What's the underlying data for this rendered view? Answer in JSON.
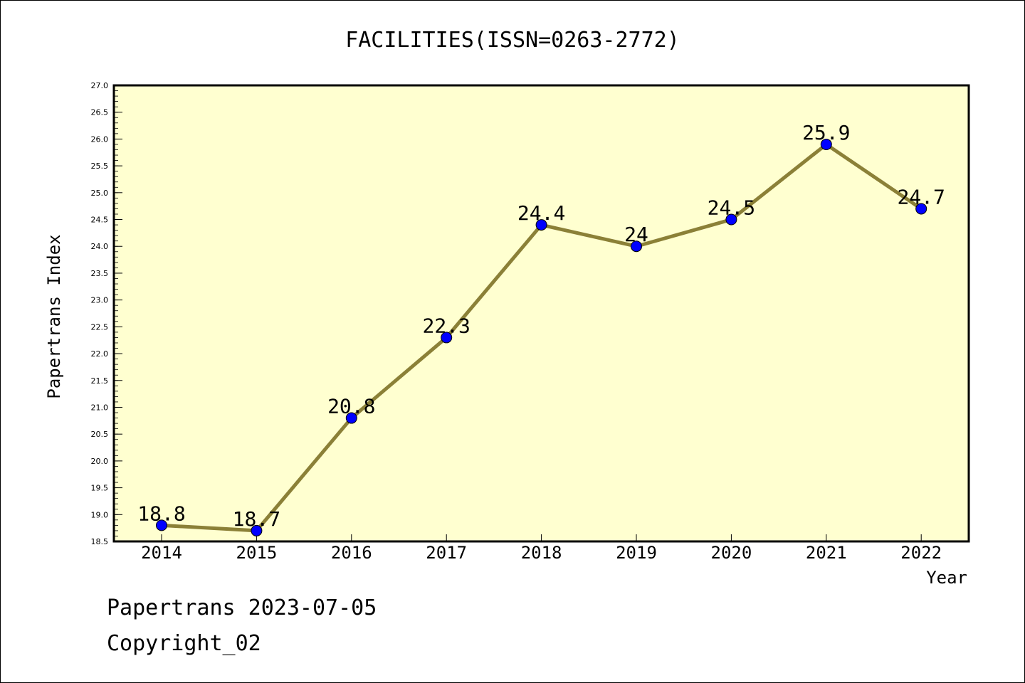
{
  "chart_data": {
    "type": "line",
    "title": "FACILITIES(ISSN=0263-2772)",
    "xlabel": "Year",
    "ylabel": "Papertrans Index",
    "categories": [
      "2014",
      "2015",
      "2016",
      "2017",
      "2018",
      "2019",
      "2020",
      "2021",
      "2022"
    ],
    "values": [
      18.8,
      18.7,
      20.8,
      22.3,
      24.4,
      24.0,
      24.5,
      25.9,
      24.7
    ],
    "data_labels": [
      "18.8",
      "18.7",
      "20.8",
      "22.3",
      "24.4",
      "24",
      "24.5",
      "25.9",
      "24.7"
    ],
    "ylim": [
      18.5,
      27.0
    ],
    "yticks": [
      "18.5",
      "19.0",
      "19.5",
      "20.0",
      "20.5",
      "21.0",
      "21.5",
      "22.0",
      "22.5",
      "23.0",
      "23.5",
      "24.0",
      "24.5",
      "25.0",
      "25.5",
      "26.0",
      "26.5",
      "27.0"
    ],
    "grid": false,
    "legend": "none",
    "colors": {
      "plot_background": "#ffffd0",
      "line": "#8b8037",
      "marker": "#0000ff",
      "text": "#000000"
    }
  },
  "footer": {
    "line1": "Papertrans 2023-07-05",
    "line2": "Copyright_02"
  }
}
